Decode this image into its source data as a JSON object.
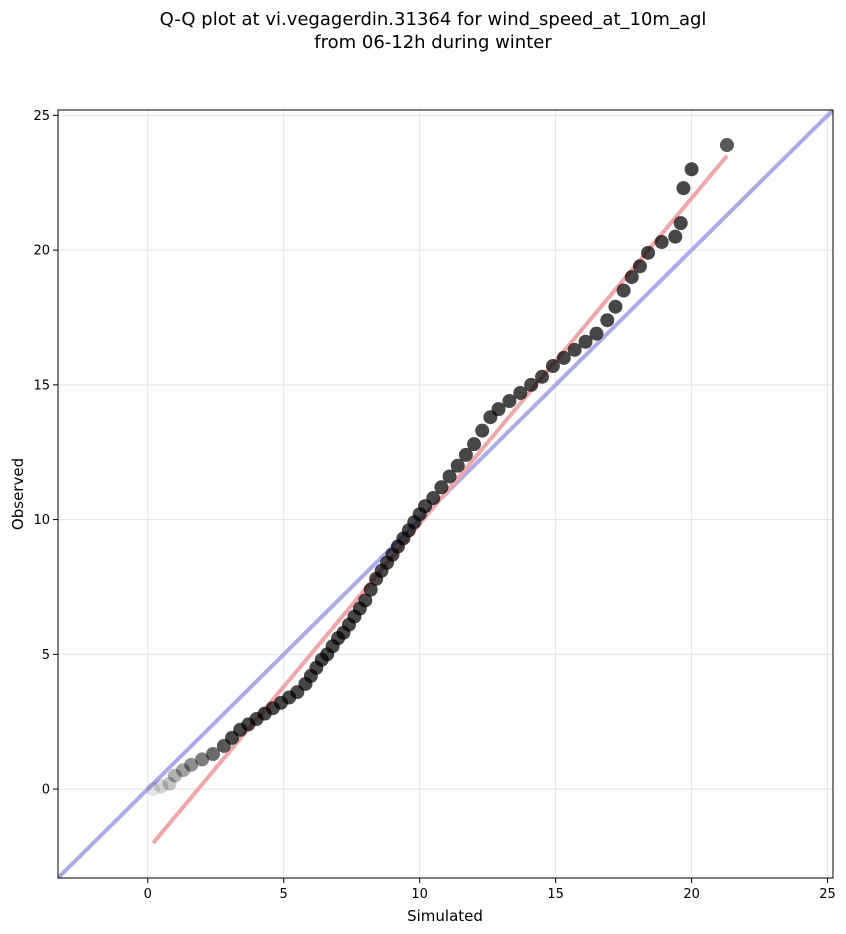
{
  "chart_data": {
    "type": "scatter",
    "title_lines": [
      "Q-Q plot at vi.vegagerdin.31364 for wind_speed_at_10m_agl",
      "from 06-12h during winter"
    ],
    "xlabel": "Simulated",
    "ylabel": "Observed",
    "xlim": [
      -3.3,
      25.2
    ],
    "ylim": [
      -3.3,
      25.2
    ],
    "xticks": [
      0,
      5,
      10,
      15,
      20,
      25
    ],
    "yticks": [
      0,
      5,
      10,
      15,
      20,
      25
    ],
    "grid": true,
    "reference_line": {
      "slope": 1,
      "intercept": 0,
      "color": "#aaaaee"
    },
    "fit_line": {
      "x": [
        0.2,
        21.3
      ],
      "y": [
        -2.0,
        23.5
      ],
      "color": "#f4a6a6"
    },
    "points_color": "#000000",
    "points": [
      {
        "x": 0.2,
        "y": 0.0
      },
      {
        "x": 0.5,
        "y": 0.1
      },
      {
        "x": 0.8,
        "y": 0.2
      },
      {
        "x": 1.0,
        "y": 0.5
      },
      {
        "x": 1.3,
        "y": 0.7
      },
      {
        "x": 1.6,
        "y": 0.9
      },
      {
        "x": 2.0,
        "y": 1.1
      },
      {
        "x": 2.4,
        "y": 1.3
      },
      {
        "x": 2.8,
        "y": 1.6
      },
      {
        "x": 3.1,
        "y": 1.9
      },
      {
        "x": 3.4,
        "y": 2.2
      },
      {
        "x": 3.7,
        "y": 2.4
      },
      {
        "x": 4.0,
        "y": 2.6
      },
      {
        "x": 4.3,
        "y": 2.8
      },
      {
        "x": 4.6,
        "y": 3.0
      },
      {
        "x": 4.9,
        "y": 3.2
      },
      {
        "x": 5.2,
        "y": 3.4
      },
      {
        "x": 5.5,
        "y": 3.6
      },
      {
        "x": 5.8,
        "y": 3.9
      },
      {
        "x": 6.0,
        "y": 4.2
      },
      {
        "x": 6.2,
        "y": 4.5
      },
      {
        "x": 6.4,
        "y": 4.8
      },
      {
        "x": 6.6,
        "y": 5.0
      },
      {
        "x": 6.8,
        "y": 5.3
      },
      {
        "x": 7.0,
        "y": 5.6
      },
      {
        "x": 7.2,
        "y": 5.8
      },
      {
        "x": 7.4,
        "y": 6.1
      },
      {
        "x": 7.6,
        "y": 6.4
      },
      {
        "x": 7.8,
        "y": 6.7
      },
      {
        "x": 8.0,
        "y": 7.0
      },
      {
        "x": 8.2,
        "y": 7.4
      },
      {
        "x": 8.4,
        "y": 7.8
      },
      {
        "x": 8.6,
        "y": 8.1
      },
      {
        "x": 8.8,
        "y": 8.4
      },
      {
        "x": 9.0,
        "y": 8.7
      },
      {
        "x": 9.2,
        "y": 9.0
      },
      {
        "x": 9.4,
        "y": 9.3
      },
      {
        "x": 9.6,
        "y": 9.6
      },
      {
        "x": 9.8,
        "y": 9.9
      },
      {
        "x": 10.0,
        "y": 10.2
      },
      {
        "x": 10.2,
        "y": 10.5
      },
      {
        "x": 10.5,
        "y": 10.8
      },
      {
        "x": 10.8,
        "y": 11.2
      },
      {
        "x": 11.1,
        "y": 11.6
      },
      {
        "x": 11.4,
        "y": 12.0
      },
      {
        "x": 11.7,
        "y": 12.4
      },
      {
        "x": 12.0,
        "y": 12.8
      },
      {
        "x": 12.3,
        "y": 13.3
      },
      {
        "x": 12.6,
        "y": 13.8
      },
      {
        "x": 12.9,
        "y": 14.1
      },
      {
        "x": 13.3,
        "y": 14.4
      },
      {
        "x": 13.7,
        "y": 14.7
      },
      {
        "x": 14.1,
        "y": 15.0
      },
      {
        "x": 14.5,
        "y": 15.3
      },
      {
        "x": 14.9,
        "y": 15.7
      },
      {
        "x": 15.3,
        "y": 16.0
      },
      {
        "x": 15.7,
        "y": 16.3
      },
      {
        "x": 16.1,
        "y": 16.6
      },
      {
        "x": 16.5,
        "y": 16.9
      },
      {
        "x": 16.9,
        "y": 17.4
      },
      {
        "x": 17.2,
        "y": 17.9
      },
      {
        "x": 17.5,
        "y": 18.5
      },
      {
        "x": 17.8,
        "y": 19.0
      },
      {
        "x": 18.1,
        "y": 19.4
      },
      {
        "x": 18.4,
        "y": 19.9
      },
      {
        "x": 18.9,
        "y": 20.3
      },
      {
        "x": 19.4,
        "y": 20.5
      },
      {
        "x": 19.6,
        "y": 21.0
      },
      {
        "x": 19.7,
        "y": 22.3
      },
      {
        "x": 20.0,
        "y": 23.0
      },
      {
        "x": 21.3,
        "y": 23.9
      }
    ]
  }
}
